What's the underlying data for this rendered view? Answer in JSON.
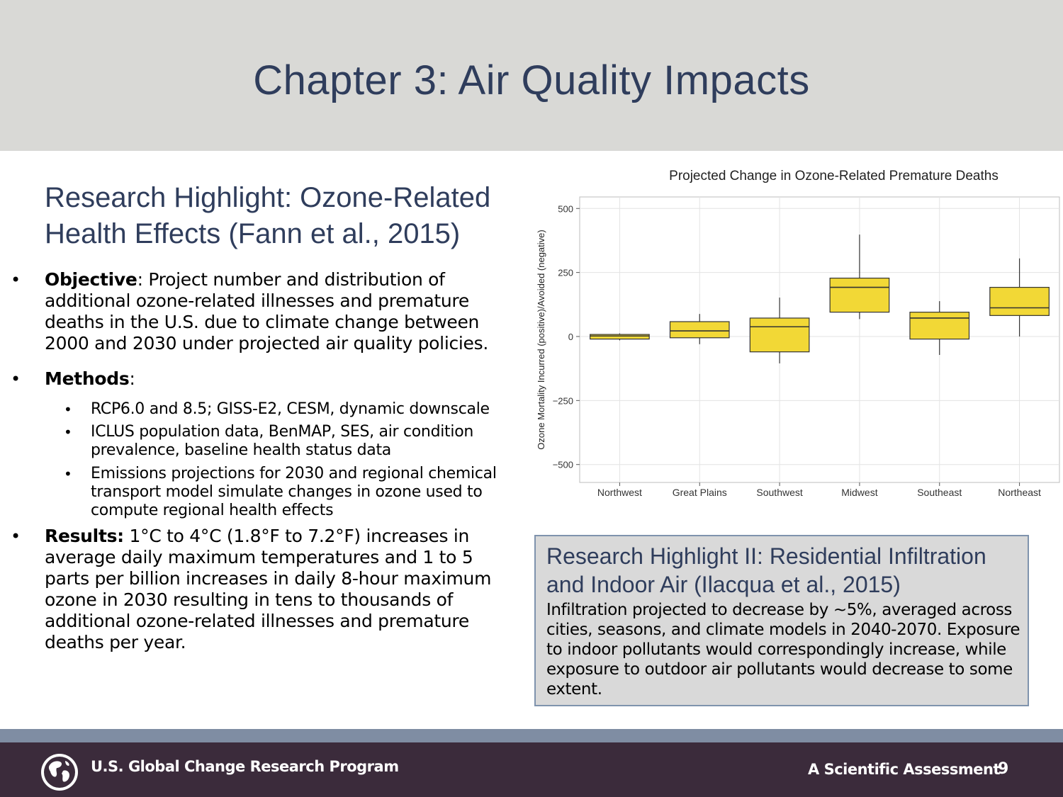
{
  "slide": {
    "title": "Chapter 3: Air Quality Impacts",
    "highlight_title": "Research Highlight: Ozone-Related Health Effects (Fann et al., 2015)",
    "objective_label": "Objective",
    "objective_text": ": Project number and distribution of additional ozone-related illnesses and premature deaths in the U.S. due to climate change between 2000 and 2030 under projected air quality policies.",
    "methods_label": "Methods",
    "methods_suffix": ":",
    "methods_items": [
      "RCP6.0 and 8.5; GISS-E2, CESM, dynamic downscale",
      "ICLUS population data, BenMAP, SES, air condition prevalence, baseline health status data",
      "Emissions projections for 2030 and regional chemical transport model simulate changes in ozone used to compute regional health effects"
    ],
    "results_label": "Results:",
    "results_text": " 1°C to 4°C (1.8°F to 7.2°F) increases in average daily maximum temperatures and 1 to 5 parts per billion increases in daily 8-hour maximum ozone in 2030 resulting in tens to thousands of additional ozone-related illnesses and premature deaths per year."
  },
  "highlight2": {
    "title": "Research Highlight II: Residential Infiltration and Indoor Air (Ilacqua et al., 2015)",
    "body": "Infiltration projected to decrease by ~5%, averaged across cities, seasons, and climate models in 2040-2070. Exposure to indoor pollutants would correspondingly increase, while exposure to outdoor air pollutants would decrease to some extent."
  },
  "footer": {
    "org": "U.S. Global Change Research Program",
    "tagline": "A Scientific Assessment",
    "page_number": "9"
  },
  "colors": {
    "title_band": "#d9d9d6",
    "title_text": "#2f3d5c",
    "box_fill": "#f2d836",
    "footer_bg": "#3b2b3b",
    "footer_stripe": "#7f8da3"
  },
  "chart_data": {
    "type": "boxplot",
    "title": "Projected Change in Ozone-Related Premature Deaths",
    "xlabel": "",
    "ylabel": "Ozone Mortality Incurred (positive)/Avoided (negative)",
    "ylim": [
      -570,
      545
    ],
    "yticks": [
      500,
      250,
      0,
      -250,
      -500
    ],
    "ytick_labels": [
      "500",
      "250",
      "0",
      "−250",
      "−500"
    ],
    "grid": true,
    "categories": [
      "Northwest",
      "Great Plains",
      "Southwest",
      "Midwest",
      "Southeast",
      "Northeast"
    ],
    "boxes": [
      {
        "min": -15,
        "q1": -10,
        "median": 2,
        "q3": 8,
        "max": 12
      },
      {
        "min": -30,
        "q1": -5,
        "median": 22,
        "q3": 58,
        "max": 88
      },
      {
        "min": -105,
        "q1": -60,
        "median": 38,
        "q3": 72,
        "max": 152
      },
      {
        "min": 68,
        "q1": 95,
        "median": 192,
        "q3": 228,
        "max": 398
      },
      {
        "min": -72,
        "q1": -10,
        "median": 72,
        "q3": 95,
        "max": 138
      },
      {
        "min": 0,
        "q1": 82,
        "median": 112,
        "q3": 192,
        "max": 305
      }
    ]
  }
}
